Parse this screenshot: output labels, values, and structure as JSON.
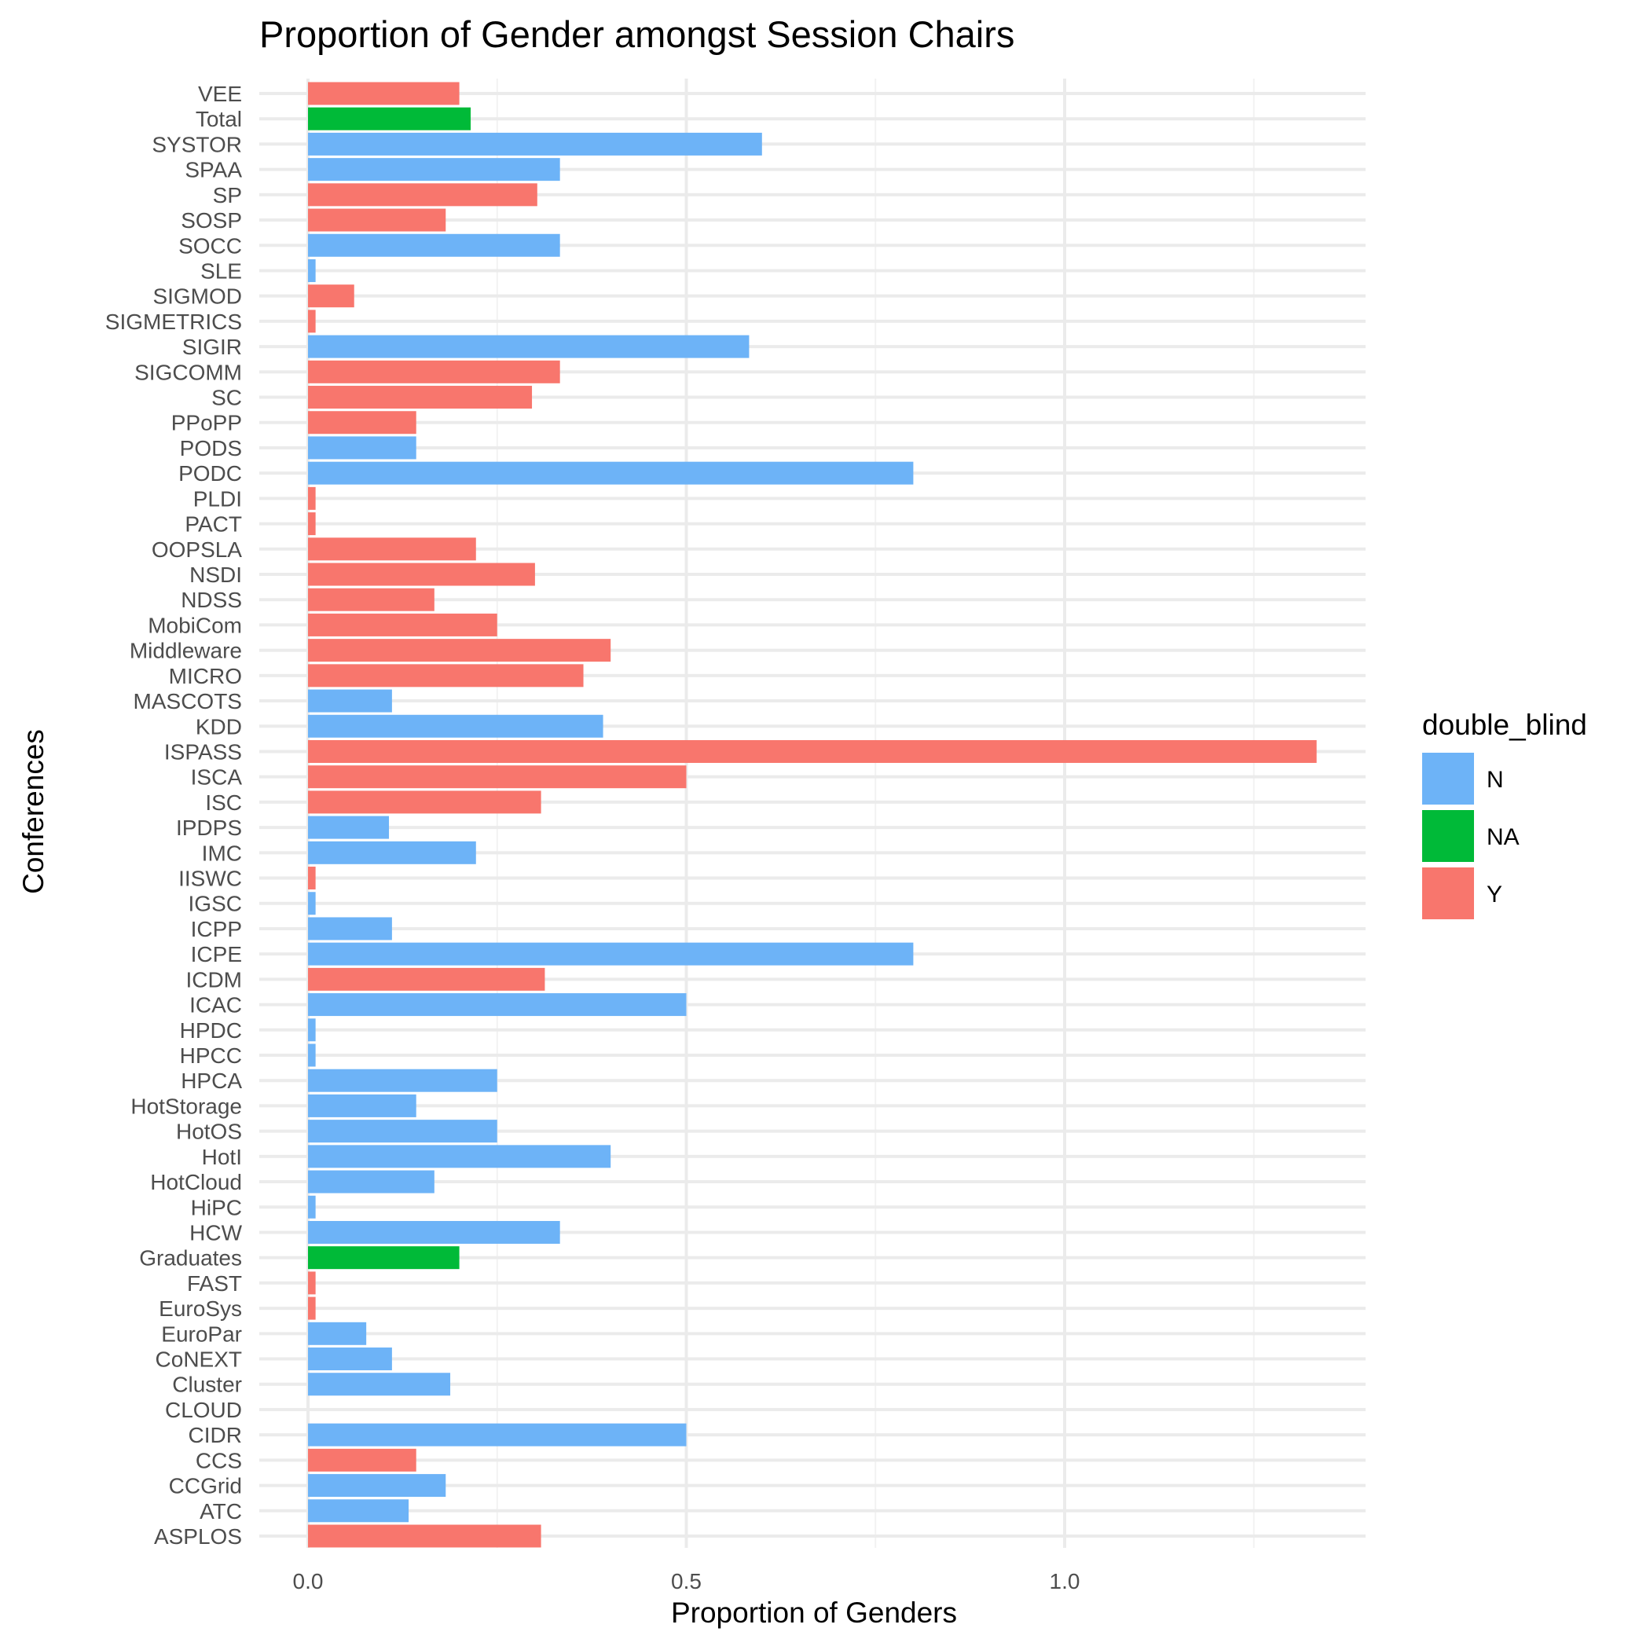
{
  "chart_data": {
    "type": "bar",
    "orientation": "horizontal",
    "title": "Proportion of Gender amongst Session Chairs",
    "xlabel": "Proportion of Genders",
    "ylabel": "Conferences",
    "xlim": [
      -0.06,
      1.4
    ],
    "xticks": [
      0.0,
      0.5,
      1.0
    ],
    "xtick_labels": [
      "0.0",
      "0.5",
      "1.0"
    ],
    "grid": true,
    "legend": {
      "title": "double_blind",
      "position": "right",
      "entries": [
        {
          "key": "N",
          "label": "N",
          "color": "#6db3f7"
        },
        {
          "key": "NA",
          "label": "NA",
          "color": "#00ba38"
        },
        {
          "key": "Y",
          "label": "Y",
          "color": "#f8766d"
        }
      ]
    },
    "bars": [
      {
        "category": "VEE",
        "value": 0.2,
        "group": "Y"
      },
      {
        "category": "Total",
        "value": 0.215,
        "group": "NA"
      },
      {
        "category": "SYSTOR",
        "value": 0.6,
        "group": "N"
      },
      {
        "category": "SPAA",
        "value": 0.333,
        "group": "N"
      },
      {
        "category": "SP",
        "value": 0.303,
        "group": "Y"
      },
      {
        "category": "SOSP",
        "value": 0.182,
        "group": "Y"
      },
      {
        "category": "SOCC",
        "value": 0.333,
        "group": "N"
      },
      {
        "category": "SLE",
        "value": 0.01,
        "group": "N"
      },
      {
        "category": "SIGMOD",
        "value": 0.061,
        "group": "Y"
      },
      {
        "category": "SIGMETRICS",
        "value": 0.01,
        "group": "Y"
      },
      {
        "category": "SIGIR",
        "value": 0.583,
        "group": "N"
      },
      {
        "category": "SIGCOMM",
        "value": 0.333,
        "group": "Y"
      },
      {
        "category": "SC",
        "value": 0.296,
        "group": "Y"
      },
      {
        "category": "PPoPP",
        "value": 0.143,
        "group": "Y"
      },
      {
        "category": "PODS",
        "value": 0.143,
        "group": "N"
      },
      {
        "category": "PODC",
        "value": 0.8,
        "group": "N"
      },
      {
        "category": "PLDI",
        "value": 0.01,
        "group": "Y"
      },
      {
        "category": "PACT",
        "value": 0.01,
        "group": "Y"
      },
      {
        "category": "OOPSLA",
        "value": 0.222,
        "group": "Y"
      },
      {
        "category": "NSDI",
        "value": 0.3,
        "group": "Y"
      },
      {
        "category": "NDSS",
        "value": 0.167,
        "group": "Y"
      },
      {
        "category": "MobiCom",
        "value": 0.25,
        "group": "Y"
      },
      {
        "category": "Middleware",
        "value": 0.4,
        "group": "Y"
      },
      {
        "category": "MICRO",
        "value": 0.364,
        "group": "Y"
      },
      {
        "category": "MASCOTS",
        "value": 0.111,
        "group": "N"
      },
      {
        "category": "KDD",
        "value": 0.39,
        "group": "N"
      },
      {
        "category": "ISPASS",
        "value": 1.333,
        "group": "Y"
      },
      {
        "category": "ISCA",
        "value": 0.5,
        "group": "Y"
      },
      {
        "category": "ISC",
        "value": 0.308,
        "group": "Y"
      },
      {
        "category": "IPDPS",
        "value": 0.107,
        "group": "N"
      },
      {
        "category": "IMC",
        "value": 0.222,
        "group": "N"
      },
      {
        "category": "IISWC",
        "value": 0.01,
        "group": "Y"
      },
      {
        "category": "IGSC",
        "value": 0.01,
        "group": "N"
      },
      {
        "category": "ICPP",
        "value": 0.111,
        "group": "N"
      },
      {
        "category": "ICPE",
        "value": 0.8,
        "group": "N"
      },
      {
        "category": "ICDM",
        "value": 0.313,
        "group": "Y"
      },
      {
        "category": "ICAC",
        "value": 0.5,
        "group": "N"
      },
      {
        "category": "HPDC",
        "value": 0.01,
        "group": "N"
      },
      {
        "category": "HPCC",
        "value": 0.01,
        "group": "N"
      },
      {
        "category": "HPCA",
        "value": 0.25,
        "group": "N"
      },
      {
        "category": "HotStorage",
        "value": 0.143,
        "group": "N"
      },
      {
        "category": "HotOS",
        "value": 0.25,
        "group": "N"
      },
      {
        "category": "HotI",
        "value": 0.4,
        "group": "N"
      },
      {
        "category": "HotCloud",
        "value": 0.167,
        "group": "N"
      },
      {
        "category": "HiPC",
        "value": 0.01,
        "group": "N"
      },
      {
        "category": "HCW",
        "value": 0.333,
        "group": "N"
      },
      {
        "category": "Graduates",
        "value": 0.2,
        "group": "NA"
      },
      {
        "category": "FAST",
        "value": 0.01,
        "group": "Y"
      },
      {
        "category": "EuroSys",
        "value": 0.01,
        "group": "Y"
      },
      {
        "category": "EuroPar",
        "value": 0.077,
        "group": "N"
      },
      {
        "category": "CoNEXT",
        "value": 0.111,
        "group": "N"
      },
      {
        "category": "Cluster",
        "value": 0.188,
        "group": "N"
      },
      {
        "category": "CLOUD",
        "value": 0.0,
        "group": "N"
      },
      {
        "category": "CIDR",
        "value": 0.5,
        "group": "N"
      },
      {
        "category": "CCS",
        "value": 0.143,
        "group": "Y"
      },
      {
        "category": "CCGrid",
        "value": 0.182,
        "group": "N"
      },
      {
        "category": "ATC",
        "value": 0.133,
        "group": "N"
      },
      {
        "category": "ASPLOS",
        "value": 0.308,
        "group": "Y"
      }
    ]
  }
}
